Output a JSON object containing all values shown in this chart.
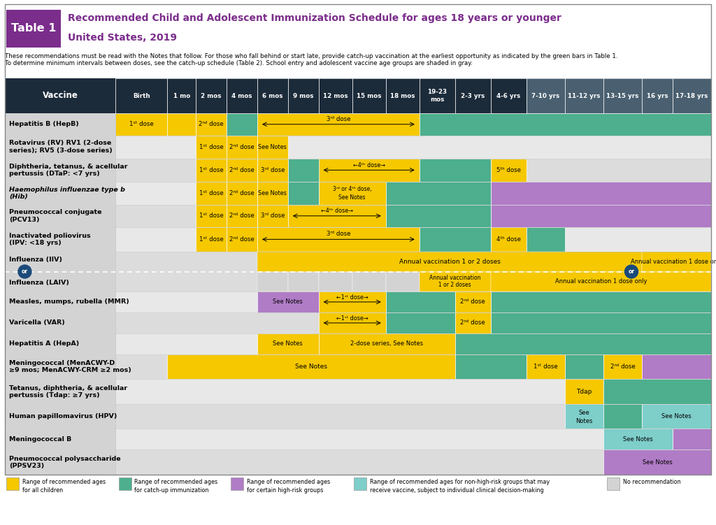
{
  "title_box_text": "Table 1",
  "title_main": "Recommended Child and Adolescent Immunization Schedule for ages 18 years or younger",
  "title_sub": "United States, 2019",
  "subtitle_text": "These recommendations must be read with the Notes that follow. For those who fall behind or start late, provide catch-up vaccination at the earliest opportunity as indicated by the green bars in Table 1.\nTo determine minimum intervals between doses, see the catch-up schedule (Table 2). School entry and adolescent vaccine age groups are shaded in gray.",
  "colors": {
    "yellow": "#F5C800",
    "green": "#4DAF8D",
    "purple": "#B07CC6",
    "light_blue": "#7ECECA",
    "light_gray": "#D3D3D3",
    "header_dark": "#1C2B3A",
    "header_gray": "#4A6070",
    "white": "#FFFFFF",
    "purple_title": "#7B2D8B",
    "purple_box": "#7B2D8B",
    "row_light": "#E8E8E8",
    "row_white": "#F5F5F5",
    "border": "#AAAAAA"
  },
  "age_columns": [
    "Birth",
    "1 mo",
    "2 mos",
    "4 mos",
    "6 mos",
    "9 mos",
    "12 mos",
    "15 mos",
    "18 mos",
    "19-23\nmos",
    "2-3 yrs",
    "4-6 yrs",
    "7-10 yrs",
    "11-12 yrs",
    "13-15 yrs",
    "16 yrs",
    "17-18 yrs"
  ],
  "col_props": [
    1.05,
    0.58,
    0.62,
    0.62,
    0.62,
    0.62,
    0.68,
    0.68,
    0.68,
    0.72,
    0.72,
    0.72,
    0.78,
    0.78,
    0.78,
    0.62,
    0.78
  ],
  "legend": [
    {
      "color": "#F5C800",
      "label": "Range of recommended ages\nfor all children"
    },
    {
      "color": "#4DAF8D",
      "label": "Range of recommended ages\nfor catch-up immunization"
    },
    {
      "color": "#B07CC6",
      "label": "Range of recommended ages\nfor certain high-risk groups"
    },
    {
      "color": "#7ECECA",
      "label": "Range of recommended ages for non-high-risk groups that may\nreceive vaccine, subject to individual clinical decision-making"
    },
    {
      "color": "#D3D3D3",
      "label": "No recommendation"
    }
  ]
}
